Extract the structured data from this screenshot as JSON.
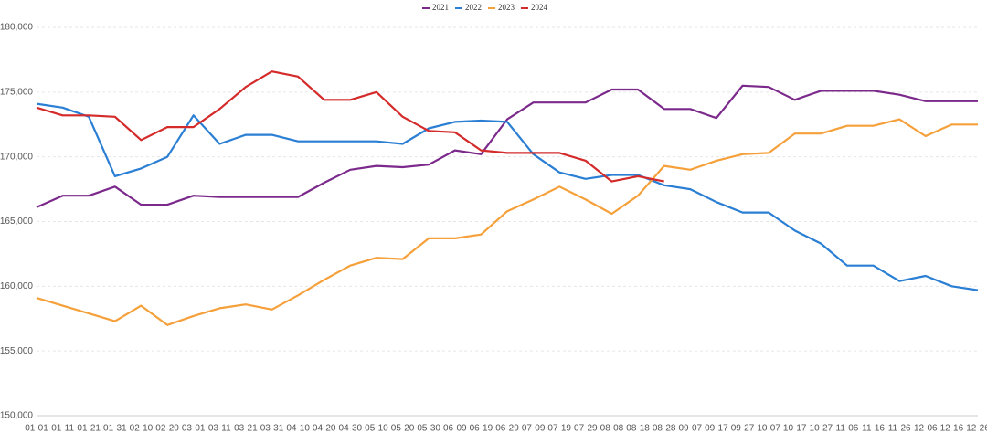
{
  "chart_data": {
    "type": "line",
    "categories": [
      "01-01",
      "01-11",
      "01-21",
      "01-31",
      "02-10",
      "02-20",
      "03-01",
      "03-11",
      "03-21",
      "03-31",
      "04-10",
      "04-20",
      "04-30",
      "05-10",
      "05-20",
      "05-30",
      "06-09",
      "06-19",
      "06-29",
      "07-09",
      "07-19",
      "07-29",
      "08-08",
      "08-18",
      "08-28",
      "09-07",
      "09-17",
      "09-27",
      "10-07",
      "10-17",
      "10-27",
      "11-06",
      "11-16",
      "11-26",
      "12-06",
      "12-16",
      "12-26"
    ],
    "series": [
      {
        "name": "2021",
        "color": "#7b2a8b",
        "values": [
          166100,
          167000,
          167000,
          167700,
          166300,
          166300,
          167000,
          166900,
          166900,
          166900,
          166900,
          168000,
          169000,
          169300,
          169200,
          169400,
          170500,
          170200,
          172900,
          174200,
          174200,
          174200,
          175200,
          175200,
          173700,
          173700,
          173000,
          175500,
          175400,
          174400,
          175100,
          175100,
          175100,
          174800,
          174300,
          174300,
          174300
        ]
      },
      {
        "name": "2022",
        "color": "#2a7fd4",
        "values": [
          174100,
          173800,
          173100,
          168500,
          169100,
          170000,
          173200,
          171000,
          171700,
          171700,
          171200,
          171200,
          171200,
          171200,
          171000,
          172200,
          172700,
          172800,
          172700,
          170200,
          168800,
          168300,
          168600,
          168600,
          167800,
          167500,
          166500,
          165700,
          165700,
          164300,
          163300,
          161600,
          161600,
          160400,
          160800,
          160000,
          159700
        ]
      },
      {
        "name": "2023",
        "color": "#f5a03a",
        "values": [
          159100,
          158500,
          157900,
          157300,
          158500,
          157000,
          157700,
          158300,
          158600,
          158200,
          159300,
          160500,
          161600,
          162200,
          162100,
          163700,
          163700,
          164000,
          165800,
          166700,
          167700,
          166700,
          165600,
          167000,
          169300,
          169000,
          169700,
          170200,
          170300,
          171800,
          171800,
          172400,
          172400,
          172900,
          171600,
          172500,
          172500
        ]
      },
      {
        "name": "2024",
        "color": "#d42a2a",
        "values": [
          173800,
          173200,
          173200,
          173100,
          171300,
          172300,
          172300,
          173700,
          175400,
          176600,
          176200,
          174400,
          174400,
          175000,
          173100,
          172000,
          171900,
          170500,
          170300,
          170300,
          170300,
          169700,
          168100,
          168500,
          168100,
          null,
          null,
          null,
          null,
          null,
          null,
          null,
          null,
          null,
          null,
          null,
          null
        ]
      }
    ],
    "ylim": [
      150000,
      180000
    ],
    "yticks": [
      {
        "value": 150000,
        "label": "150,000"
      },
      {
        "value": 155000,
        "label": "155,000"
      },
      {
        "value": 160000,
        "label": "160,000"
      },
      {
        "value": 165000,
        "label": "165,000"
      },
      {
        "value": 170000,
        "label": "170,000"
      },
      {
        "value": 175000,
        "label": "175,000"
      },
      {
        "value": 180000,
        "label": "180,000"
      }
    ],
    "grid": true,
    "legend": "top"
  }
}
